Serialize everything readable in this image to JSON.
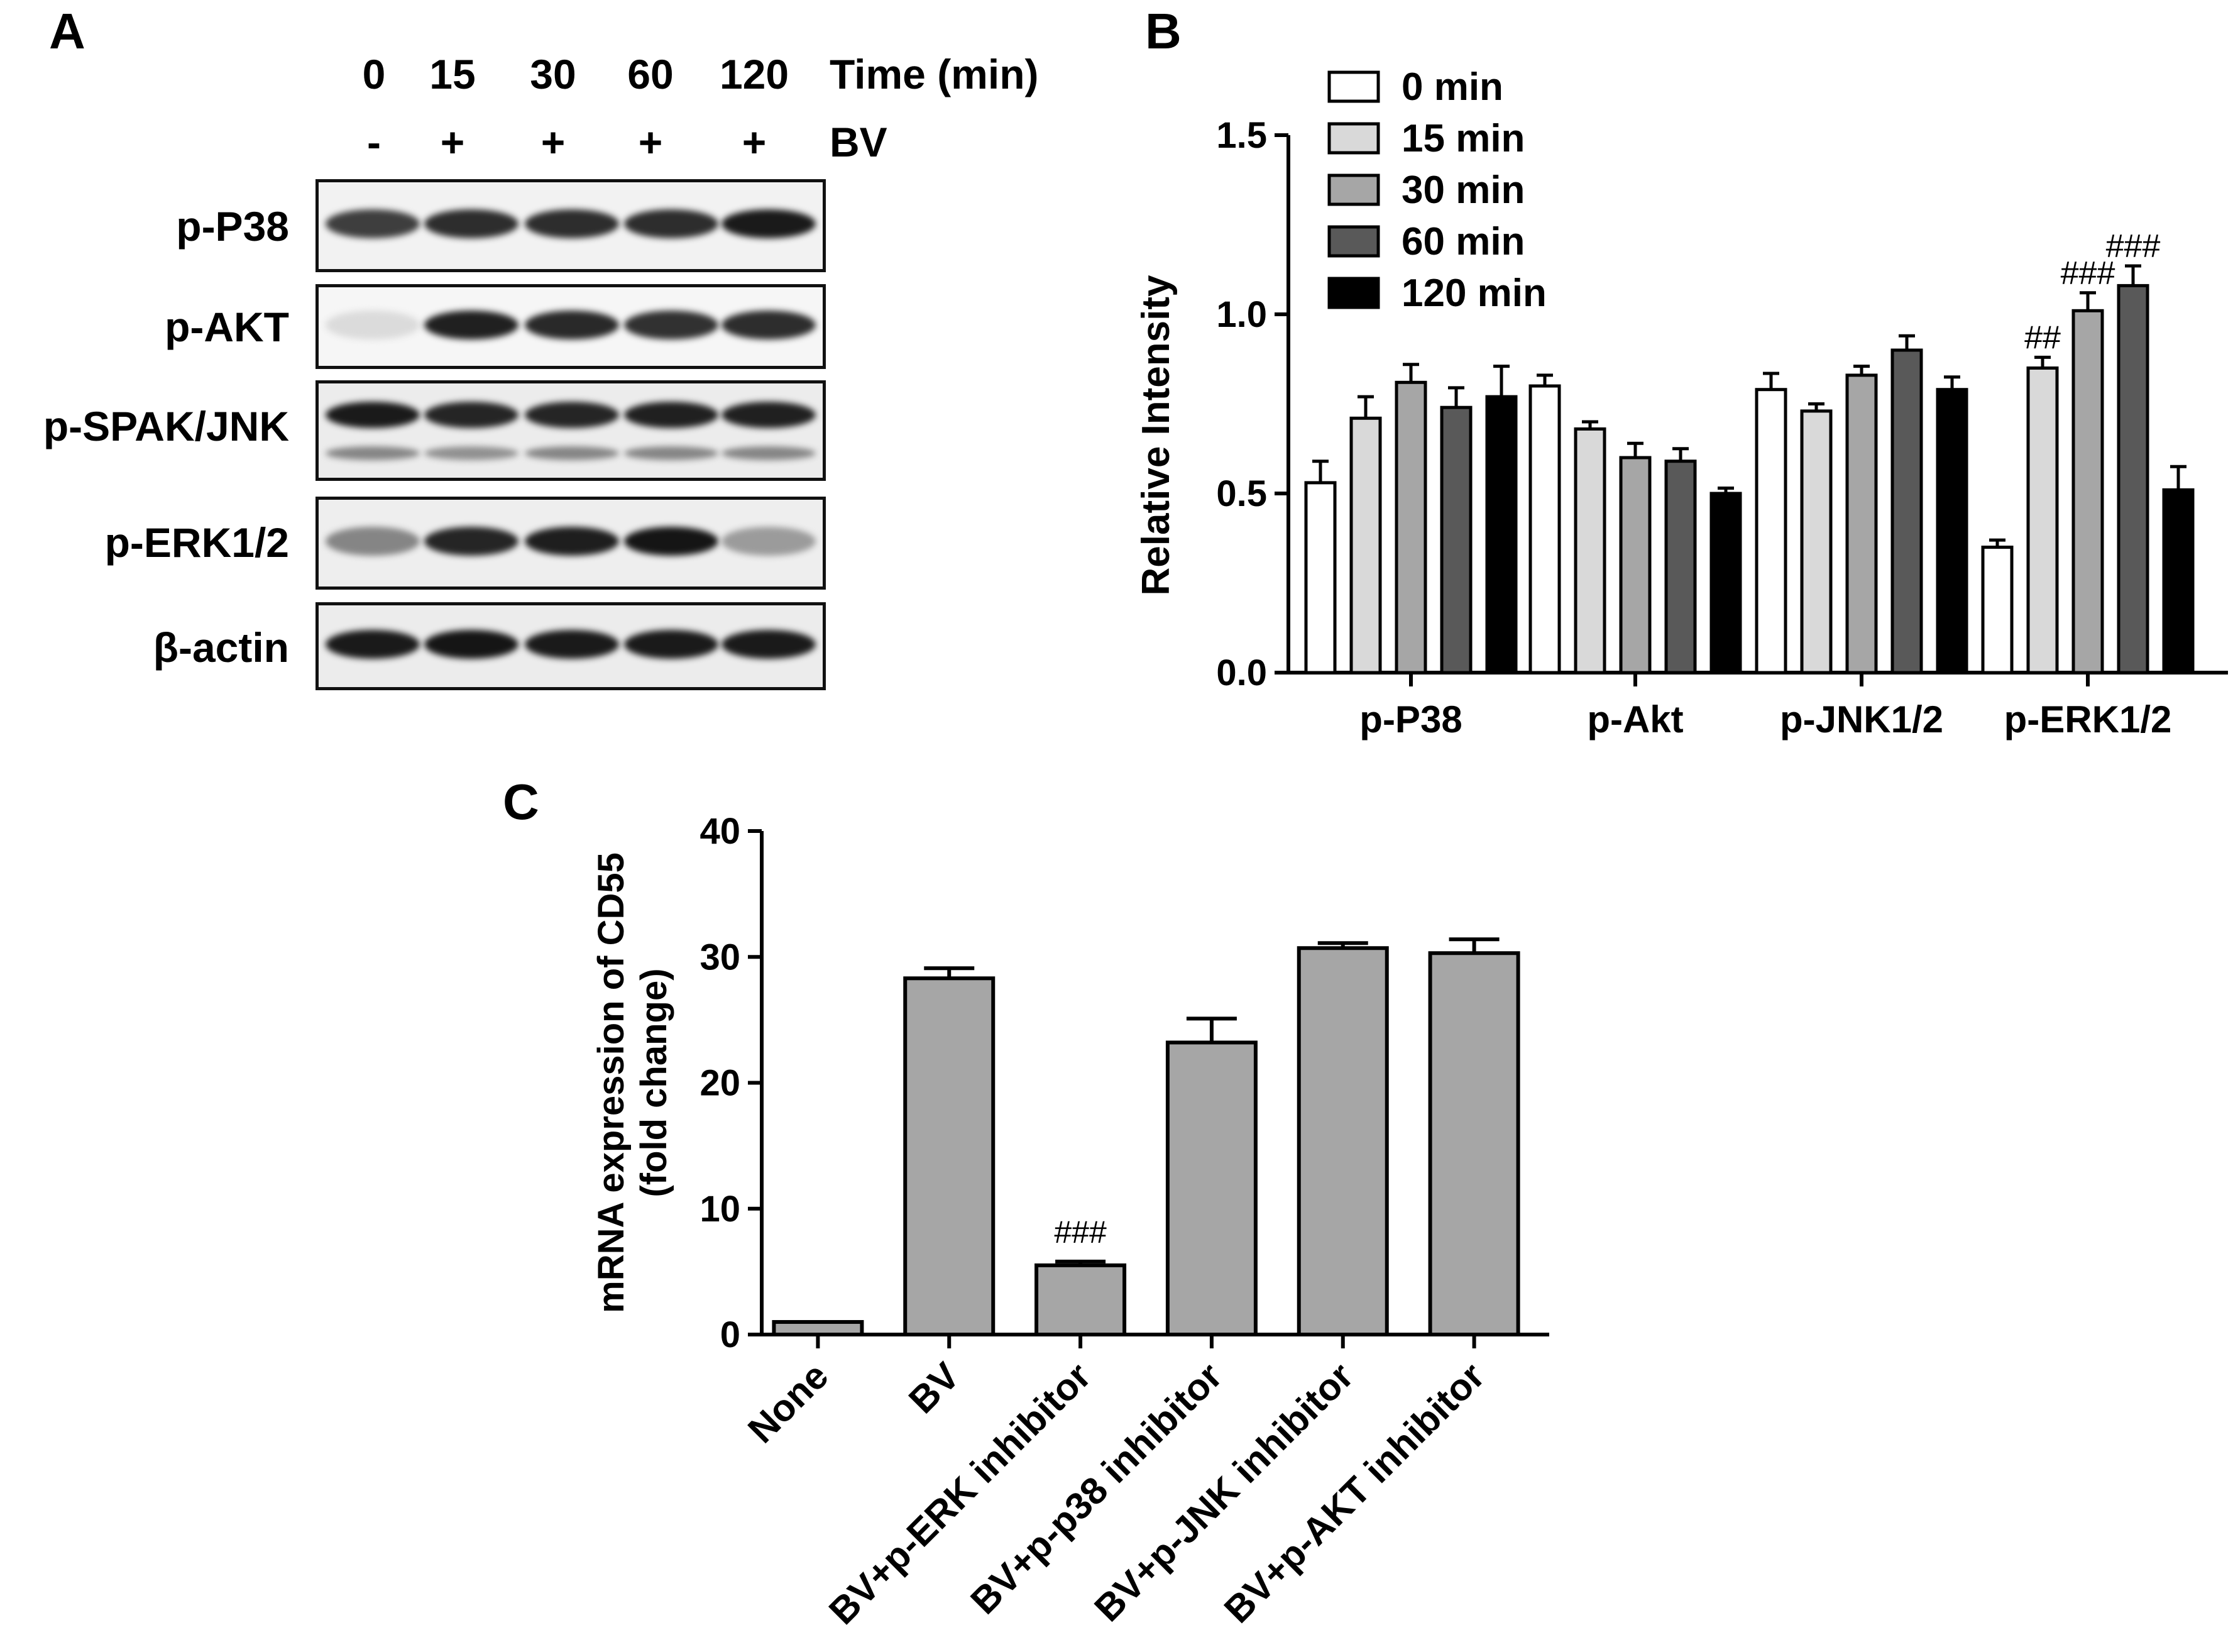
{
  "panelA": {
    "letter": "A",
    "time_values": [
      "0",
      "15",
      "30",
      "60",
      "120"
    ],
    "time_label": "Time (min)",
    "bv_values": [
      "-",
      "+",
      "+",
      "+",
      "+"
    ],
    "bv_label": "BV",
    "blots": [
      {
        "label": "p-P38",
        "intensity": [
          0.78,
          0.86,
          0.86,
          0.86,
          0.95
        ],
        "secondary": null
      },
      {
        "label": "p-AKT",
        "intensity": [
          0.05,
          0.92,
          0.88,
          0.84,
          0.86
        ],
        "secondary": null
      },
      {
        "label": "p-SPAK/JNK",
        "intensity": [
          0.95,
          0.9,
          0.9,
          0.92,
          0.92
        ],
        "secondary": [
          0.45,
          0.4,
          0.45,
          0.45,
          0.45
        ]
      },
      {
        "label": "p-ERK1/2",
        "intensity": [
          0.45,
          0.9,
          0.93,
          0.97,
          0.35
        ],
        "secondary": null
      },
      {
        "label": "β-actin",
        "intensity": [
          0.95,
          0.97,
          0.95,
          0.95,
          0.95
        ],
        "secondary": null
      }
    ]
  },
  "chart_data": [
    {
      "panel": "B",
      "type": "bar",
      "ylabel": "Relative Intensity",
      "ylim": [
        0,
        1.5
      ],
      "yticks": [
        "0.0",
        "0.5",
        "1.0",
        "1.5"
      ],
      "categories": [
        "p-P38",
        "p-Akt",
        "p-JNK1/2",
        "p-ERK1/2"
      ],
      "legend_position": "top-left",
      "series": [
        {
          "name": "0 min",
          "color": "#ffffff",
          "values": [
            0.53,
            0.8,
            0.79,
            0.35
          ],
          "errors": [
            0.06,
            0.03,
            0.045,
            0.02
          ]
        },
        {
          "name": "15 min",
          "color": "#d9d9d9",
          "values": [
            0.71,
            0.68,
            0.73,
            0.85
          ],
          "errors": [
            0.06,
            0.02,
            0.02,
            0.03
          ]
        },
        {
          "name": "30 min",
          "color": "#a6a6a6",
          "values": [
            0.81,
            0.6,
            0.83,
            1.01
          ],
          "errors": [
            0.05,
            0.04,
            0.025,
            0.05
          ]
        },
        {
          "name": "60 min",
          "color": "#595959",
          "values": [
            0.74,
            0.59,
            0.9,
            1.08
          ],
          "errors": [
            0.055,
            0.035,
            0.04,
            0.055
          ]
        },
        {
          "name": "120 min",
          "color": "#000000",
          "values": [
            0.77,
            0.5,
            0.79,
            0.51
          ],
          "errors": [
            0.085,
            0.015,
            0.035,
            0.065
          ]
        }
      ],
      "annotations": [
        {
          "category": "p-ERK1/2",
          "series": "15 min",
          "text": "##"
        },
        {
          "category": "p-ERK1/2",
          "series": "30 min",
          "text": "###"
        },
        {
          "category": "p-ERK1/2",
          "series": "60 min",
          "text": "###"
        }
      ]
    },
    {
      "panel": "C",
      "type": "bar",
      "ylabel": "mRNA expression of CD55",
      "ylabel2": "(fold change)",
      "ylim": [
        0,
        40
      ],
      "yticks": [
        "0",
        "10",
        "20",
        "30",
        "40"
      ],
      "color": "#a6a6a6",
      "categories": [
        "None",
        "BV",
        "BV+p-ERK inhibitor",
        "BV+p-p38 inhibitor",
        "BV+p-JNK inhibitor",
        "BV+p-AKT inhibitor"
      ],
      "values": [
        1.0,
        28.3,
        5.5,
        23.2,
        30.7,
        30.3
      ],
      "errors": [
        0.0,
        0.8,
        0.3,
        1.9,
        0.4,
        1.1
      ],
      "annotations": [
        {
          "category": "BV+p-ERK inhibitor",
          "text": "###"
        }
      ]
    }
  ],
  "labels": {
    "B": "B",
    "C": "C"
  }
}
